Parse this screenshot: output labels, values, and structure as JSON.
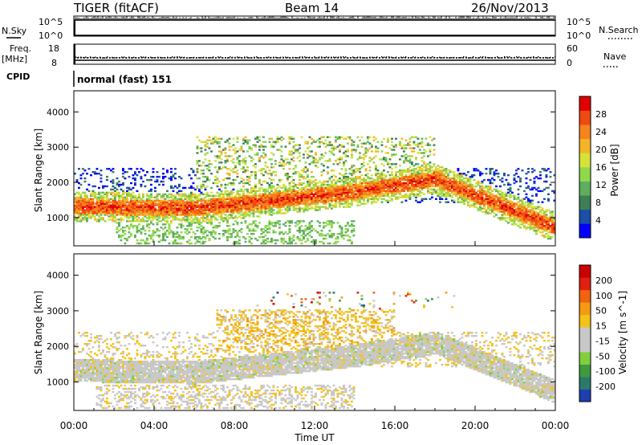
{
  "header": {
    "title": "TIGER (fitACF)",
    "beam": "Beam 14",
    "date": "26/Nov/2013"
  },
  "status_panel": {
    "nsky_label": "N.Sky",
    "nsearch_label": "N.Search",
    "nsky_ticks": [
      "10^5",
      "10^0"
    ],
    "nsearch_ticks": [
      "10^5",
      "10^0"
    ],
    "freq_label": "Freq.",
    "freq_unit": "[MHz]",
    "freq_ticks": [
      "18",
      "8"
    ],
    "nave_label": "Nave",
    "nave_ticks": [
      "60",
      "0"
    ],
    "cpid_label": "CPID",
    "cpid_text": "normal (fast) 151"
  },
  "chart_data": [
    {
      "type": "heatmap",
      "name": "power",
      "ylabel": "Slant Range [km]",
      "yticks": [
        "4000",
        "3000",
        "2000",
        "1000"
      ],
      "ylim": [
        200,
        4600
      ],
      "colorbar_label": "Power [dB]",
      "colorbar_ticks": [
        "28",
        "24",
        "20",
        "16",
        "12",
        "8",
        "4"
      ],
      "colorbar_colors": [
        "#0000ff",
        "#1b4fa8",
        "#3f7f55",
        "#5fae5f",
        "#8fd84d",
        "#d6e23a",
        "#f2b52a",
        "#f6831d",
        "#f04a12",
        "#e00000"
      ],
      "background": "#ffffff"
    },
    {
      "type": "heatmap",
      "name": "velocity",
      "ylabel": "Slant Range [km]",
      "yticks": [
        "4000",
        "3000",
        "2000",
        "1000"
      ],
      "ylim": [
        200,
        4600
      ],
      "xlabel": "Time UT",
      "xticks": [
        "00:00",
        "04:00",
        "08:00",
        "12:00",
        "16:00",
        "20:00",
        "00:00"
      ],
      "colorbar_label": "Velocity [m s^-1]",
      "colorbar_ticks": [
        "200",
        "100",
        "50",
        "15",
        "-15",
        "-50",
        "-100",
        "-200"
      ],
      "colorbar_colors": [
        "#1f3fb0",
        "#2a7a6a",
        "#3f9a3f",
        "#7fcf3f",
        "#c8c8c8",
        "#c8c8c8",
        "#f4c21a",
        "#f49a14",
        "#f0640f",
        "#e02010",
        "#cc0000"
      ],
      "background": "#ffffff"
    }
  ]
}
